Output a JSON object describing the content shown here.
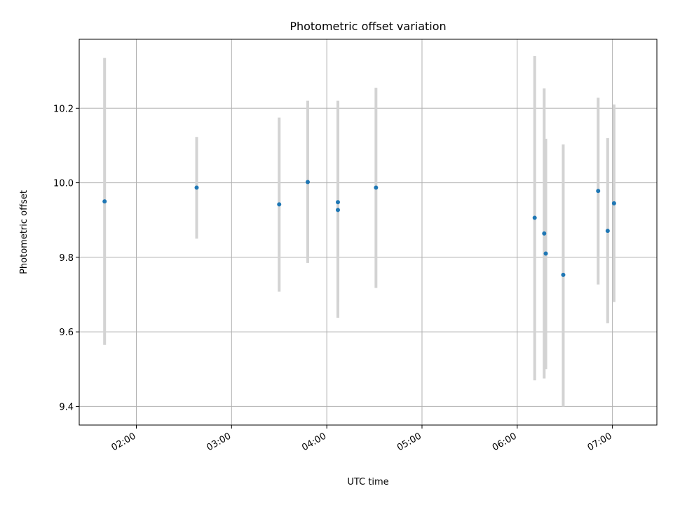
{
  "chart_data": {
    "type": "scatter",
    "title": "Photometric offset variation",
    "xlabel": "UTC time",
    "ylabel": "Photometric offset",
    "x_axis_kind": "time",
    "xlim": [
      "01:24",
      "07:28"
    ],
    "ylim": [
      9.35,
      10.385
    ],
    "x_ticks": [
      "02:00",
      "03:00",
      "04:00",
      "05:00",
      "06:00",
      "07:00"
    ],
    "y_ticks": [
      9.4,
      9.6,
      9.8,
      10.0,
      10.2
    ],
    "grid": true,
    "marker_color": "#1f77b4",
    "errorbar_color": "#d3d3d3",
    "points": [
      {
        "time": "01:40",
        "value": 9.95,
        "err_low": 9.565,
        "err_high": 10.335
      },
      {
        "time": "02:38",
        "value": 9.987,
        "err_low": 9.85,
        "err_high": 10.123
      },
      {
        "time": "03:30",
        "value": 9.942,
        "err_low": 9.708,
        "err_high": 10.175
      },
      {
        "time": "03:48",
        "value": 10.002,
        "err_low": 9.785,
        "err_high": 10.22
      },
      {
        "time": "04:07",
        "value": 9.948,
        "err_low": 9.68,
        "err_high": 10.22
      },
      {
        "time": "04:07",
        "value": 9.927,
        "err_low": 9.638,
        "err_high": 10.215
      },
      {
        "time": "04:31",
        "value": 9.987,
        "err_low": 9.718,
        "err_high": 10.255
      },
      {
        "time": "06:11",
        "value": 9.906,
        "err_low": 9.47,
        "err_high": 10.34
      },
      {
        "time": "06:17",
        "value": 9.864,
        "err_low": 9.475,
        "err_high": 10.253
      },
      {
        "time": "06:18",
        "value": 9.81,
        "err_low": 9.5,
        "err_high": 10.118
      },
      {
        "time": "06:29",
        "value": 9.753,
        "err_low": 9.4,
        "err_high": 10.103
      },
      {
        "time": "06:51",
        "value": 9.978,
        "err_low": 9.727,
        "err_high": 10.228
      },
      {
        "time": "06:57",
        "value": 9.871,
        "err_low": 9.623,
        "err_high": 10.12
      },
      {
        "time": "07:01",
        "value": 9.945,
        "err_low": 9.68,
        "err_high": 10.21
      }
    ]
  }
}
